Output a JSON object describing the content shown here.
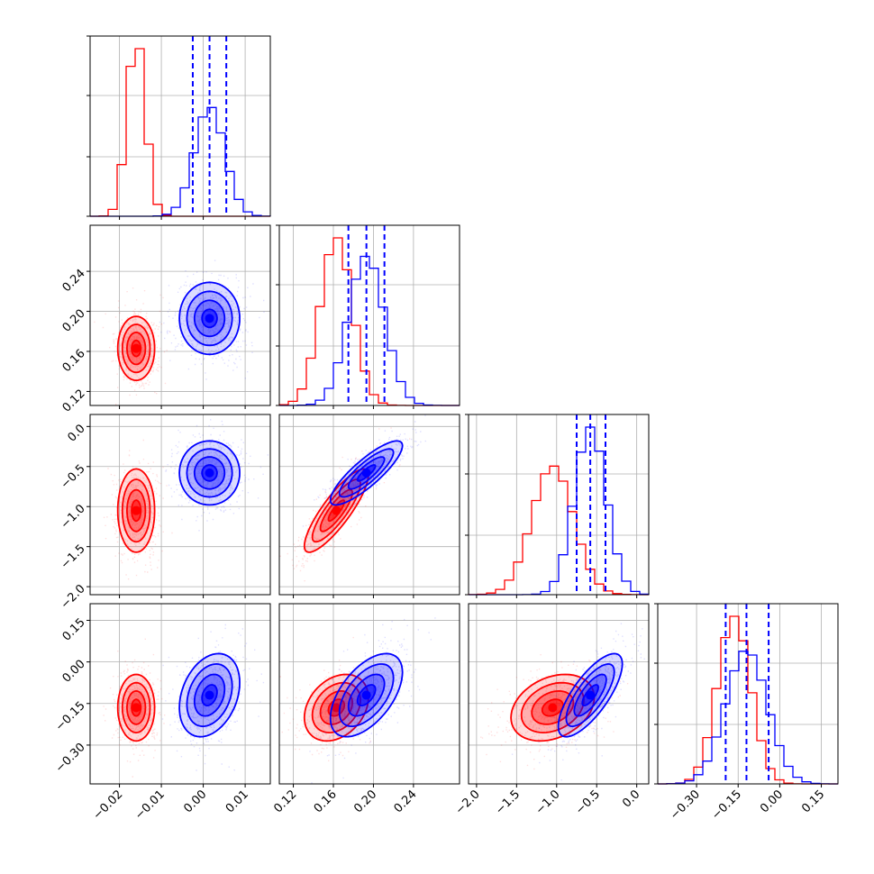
{
  "chart_data": {
    "type": "corner",
    "grid": true,
    "colors": {
      "series_a": "#ff0000",
      "series_b": "#0000ff"
    },
    "dimensions": [
      {
        "range": [
          -0.027,
          0.016
        ],
        "ticks": [
          -0.02,
          -0.01,
          0.0,
          0.01
        ],
        "tick_labels": [
          "−0.02",
          "−0.01",
          "0.00",
          "0.01"
        ]
      },
      {
        "range": [
          0.106,
          0.286
        ],
        "ticks": [
          0.12,
          0.16,
          0.2,
          0.24
        ],
        "tick_labels": [
          "0.12",
          "0.16",
          "0.20",
          "0.24"
        ]
      },
      {
        "range": [
          -2.1,
          0.15
        ],
        "ticks": [
          -2.0,
          -1.5,
          -1.0,
          -0.5,
          0.0
        ],
        "tick_labels": [
          "−2.0",
          "−1.5",
          "−1.0",
          "−0.5",
          "0.0"
        ]
      },
      {
        "range": [
          -0.44,
          0.21
        ],
        "ticks": [
          -0.3,
          -0.15,
          0.0,
          0.15
        ],
        "tick_labels": [
          "−0.30",
          "−0.15",
          "0.00",
          "0.15"
        ]
      }
    ],
    "series": [
      {
        "color": "#ff0000",
        "means": [
          -0.016,
          0.163,
          -1.05,
          -0.165
        ],
        "sds": [
          0.0022,
          0.016,
          0.26,
          0.06
        ],
        "cor": [
          [
            0,
            1,
            0.0
          ],
          [
            0,
            2,
            0.0
          ],
          [
            0,
            3,
            0.0
          ],
          [
            1,
            2,
            0.85
          ],
          [
            1,
            3,
            0.3
          ],
          [
            2,
            3,
            0.3
          ]
        ]
      },
      {
        "color": "#0000ff",
        "means": [
          0.0015,
          0.193,
          -0.58,
          -0.12
        ],
        "sds": [
          0.0036,
          0.018,
          0.2,
          0.075
        ],
        "cor": [
          [
            0,
            1,
            0.0
          ],
          [
            0,
            2,
            0.0
          ],
          [
            0,
            3,
            0.3
          ],
          [
            1,
            2,
            0.85
          ],
          [
            1,
            3,
            0.55
          ],
          [
            2,
            3,
            0.75
          ]
        ]
      }
    ],
    "quantile_lines": {
      "color": "#0000ff",
      "values": [
        [
          -0.0025,
          0.0015,
          0.0055
        ],
        [
          0.175,
          0.193,
          0.211
        ],
        [
          -0.75,
          -0.58,
          -0.39
        ],
        [
          -0.195,
          -0.12,
          -0.04
        ]
      ]
    }
  }
}
